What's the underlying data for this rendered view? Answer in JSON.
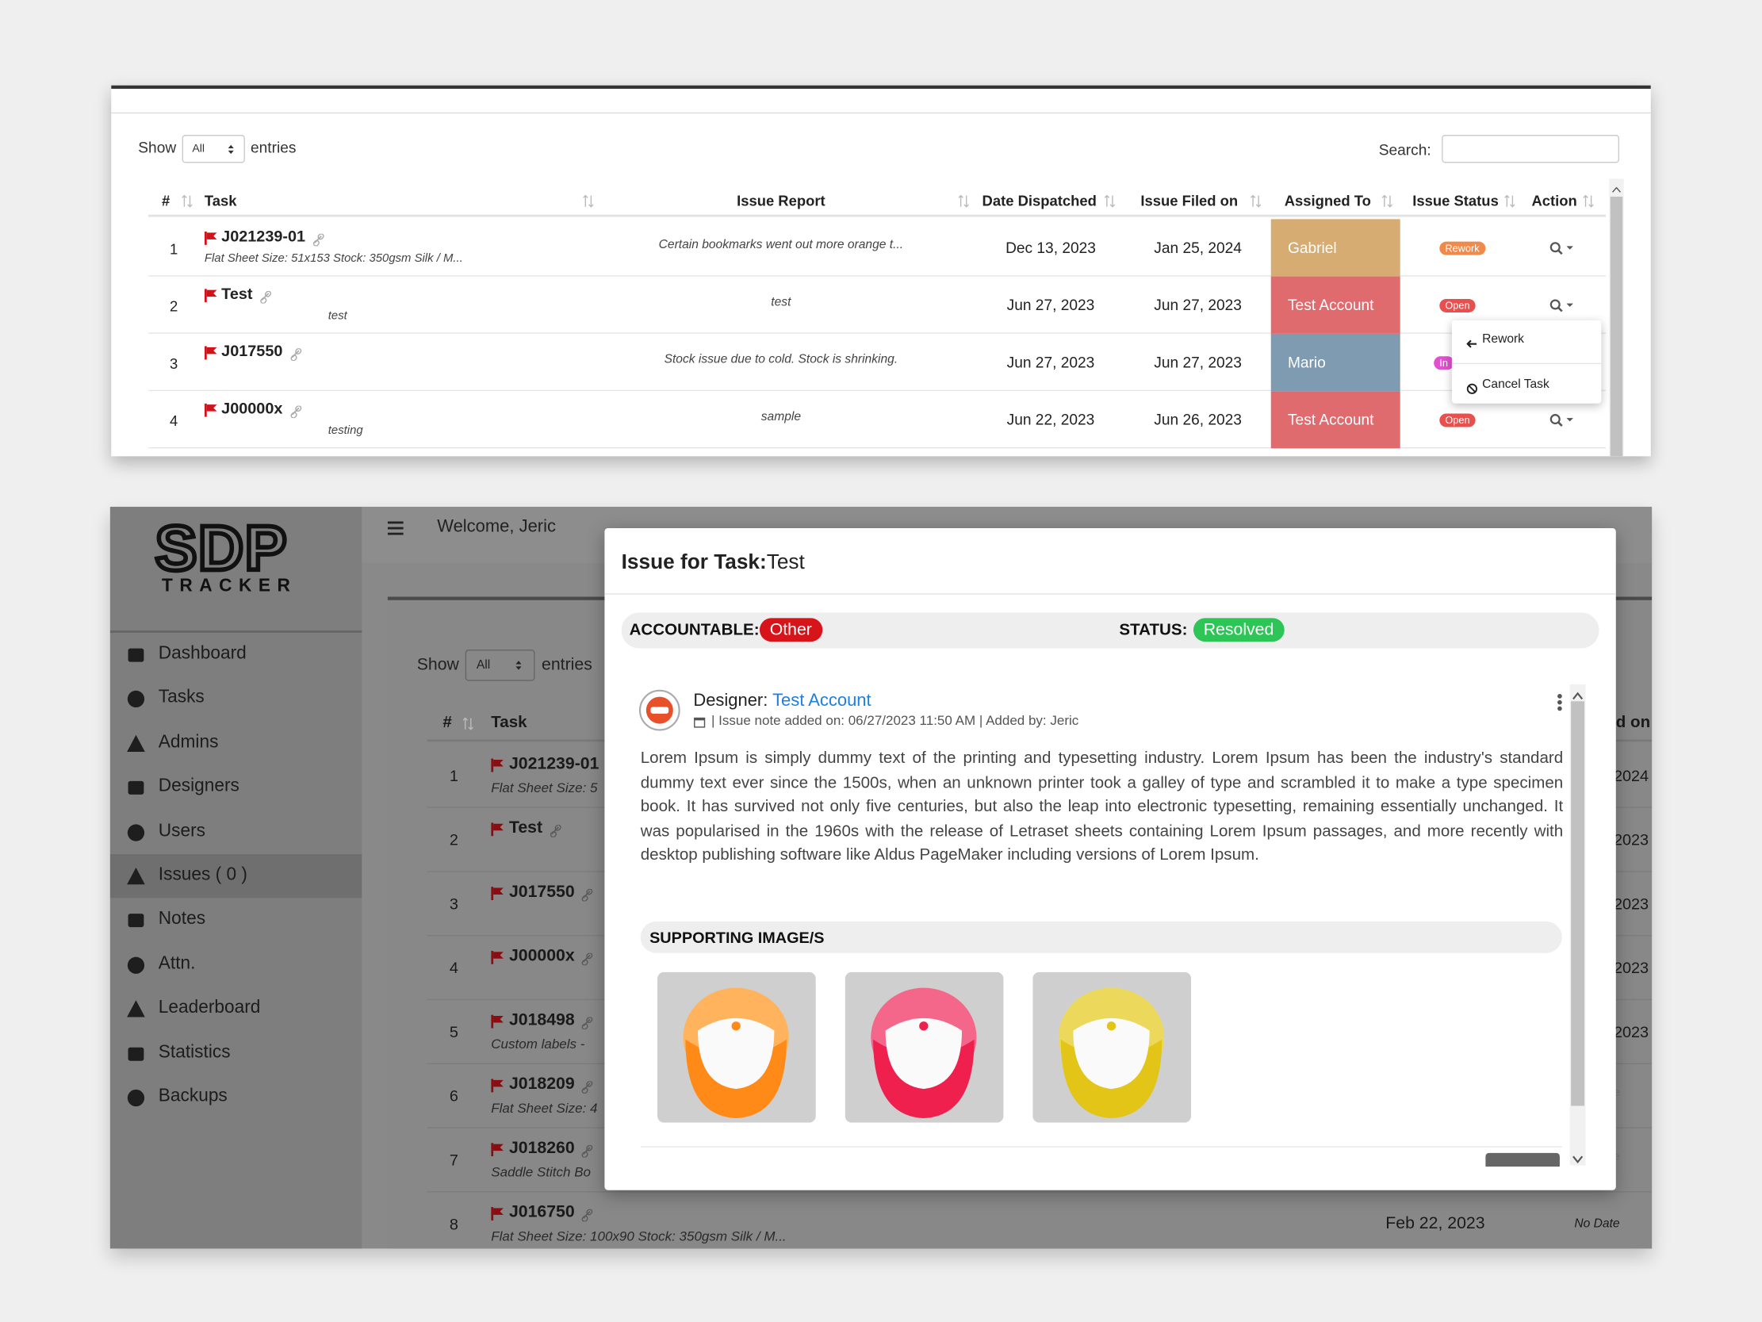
{
  "top_table": {
    "show_label": "Show",
    "entries_select": "All",
    "entries_label": "entries",
    "search_label": "Search:",
    "columns": [
      "#",
      "Task",
      "Issue Report",
      "Date Dispatched",
      "Issue Filed on",
      "Assigned To",
      "Issue Status",
      "Action"
    ],
    "rows": [
      {
        "num": "1",
        "task": "J021239-01",
        "details": "Flat Sheet Size: 51x153 Stock: 350gsm Silk / M...",
        "report": "Certain bookmarks went out more orange t...",
        "dispatched": "Dec 13, 2023",
        "filed": "Jan 25, 2024",
        "assigned": "Gabriel",
        "status": "Rework"
      },
      {
        "num": "2",
        "task": "Test",
        "details": "test",
        "report": "test",
        "dispatched": "Jun 27, 2023",
        "filed": "Jun 27, 2023",
        "assigned": "Test Account",
        "status": "Open"
      },
      {
        "num": "3",
        "task": "J017550",
        "details": null,
        "report": "Stock issue due to cold. Stock is shrinking.",
        "dispatched": "Jun 27, 2023",
        "filed": "Jun 27, 2023",
        "assigned": "Mario",
        "status": "In"
      },
      {
        "num": "4",
        "task": "J00000x",
        "details": "testing",
        "report": "sample",
        "dispatched": "Jun 22, 2023",
        "filed": "Jun 26, 2023",
        "assigned": "Test Account",
        "status": "Open"
      }
    ],
    "action_menu": [
      "Rework",
      "Cancel Task"
    ]
  },
  "sidebar": {
    "logo": "SDP",
    "logo_sub": "TRACKER",
    "nav": [
      "Dashboard",
      "Tasks",
      "Admins",
      "Designers",
      "Users",
      "Issues ( 0 )",
      "Notes",
      "Attn.",
      "Leaderboard",
      "Statistics",
      "Backups"
    ]
  },
  "header": {
    "welcome": "Welcome, Jeric"
  },
  "background_table": {
    "show_label": "Show",
    "entries_select": "All",
    "entries_label": "entries",
    "columns": [
      "#",
      "Task",
      "d on"
    ],
    "rows": [
      {
        "num": "1",
        "task": "J021239-01",
        "details": "Flat Sheet Size: 5",
        "right": "2024"
      },
      {
        "num": "2",
        "task": "Test",
        "details": null,
        "right": "2023"
      },
      {
        "num": "3",
        "task": "J017550",
        "details": null,
        "right": "2023"
      },
      {
        "num": "4",
        "task": "J00000x",
        "details": null,
        "right": "2023"
      },
      {
        "num": "5",
        "task": "J018498",
        "details": "Custom labels -",
        "right": "2023"
      },
      {
        "num": "6",
        "task": "J018209",
        "details": "Flat Sheet Size: 4",
        "right": "e"
      },
      {
        "num": "7",
        "task": "J018260",
        "details": "Saddle Stitch Bo",
        "right": "e"
      },
      {
        "num": "8",
        "task": "J016750",
        "details": "Flat Sheet Size: 100x90 Stock: 350gsm Silk / M...",
        "dispatched": "Feb 22, 2023",
        "right": "No Date"
      }
    ]
  },
  "modal": {
    "title_prefix": "Issue for Task:",
    "title_task": "Test",
    "accountable_label": "ACCOUNTABLE:",
    "accountable": "Other",
    "status_label": "STATUS:",
    "status": "Resolved",
    "designer_label": "Designer:",
    "designer": "Test Account",
    "note_meta": "| Issue note added on: 06/27/2023 11:50 AM | Added by: Jeric",
    "body": "Lorem Ipsum is simply dummy text of the printing and typesetting industry. Lorem Ipsum has been the industry's standard dummy text ever since the 1500s, when an unknown printer took a galley of type and scrambled it to make a type specimen book. It has survived not only five centuries, but also the leap into electronic typesetting, remaining essentially unchanged. It was popularised in the 1960s with the release of Letraset sheets containing Lorem Ipsum passages, and more recently with desktop publishing software like Aldus PageMaker including versions of Lorem Ipsum.",
    "supporting_label": "SUPPORTING IMAGE/S"
  }
}
